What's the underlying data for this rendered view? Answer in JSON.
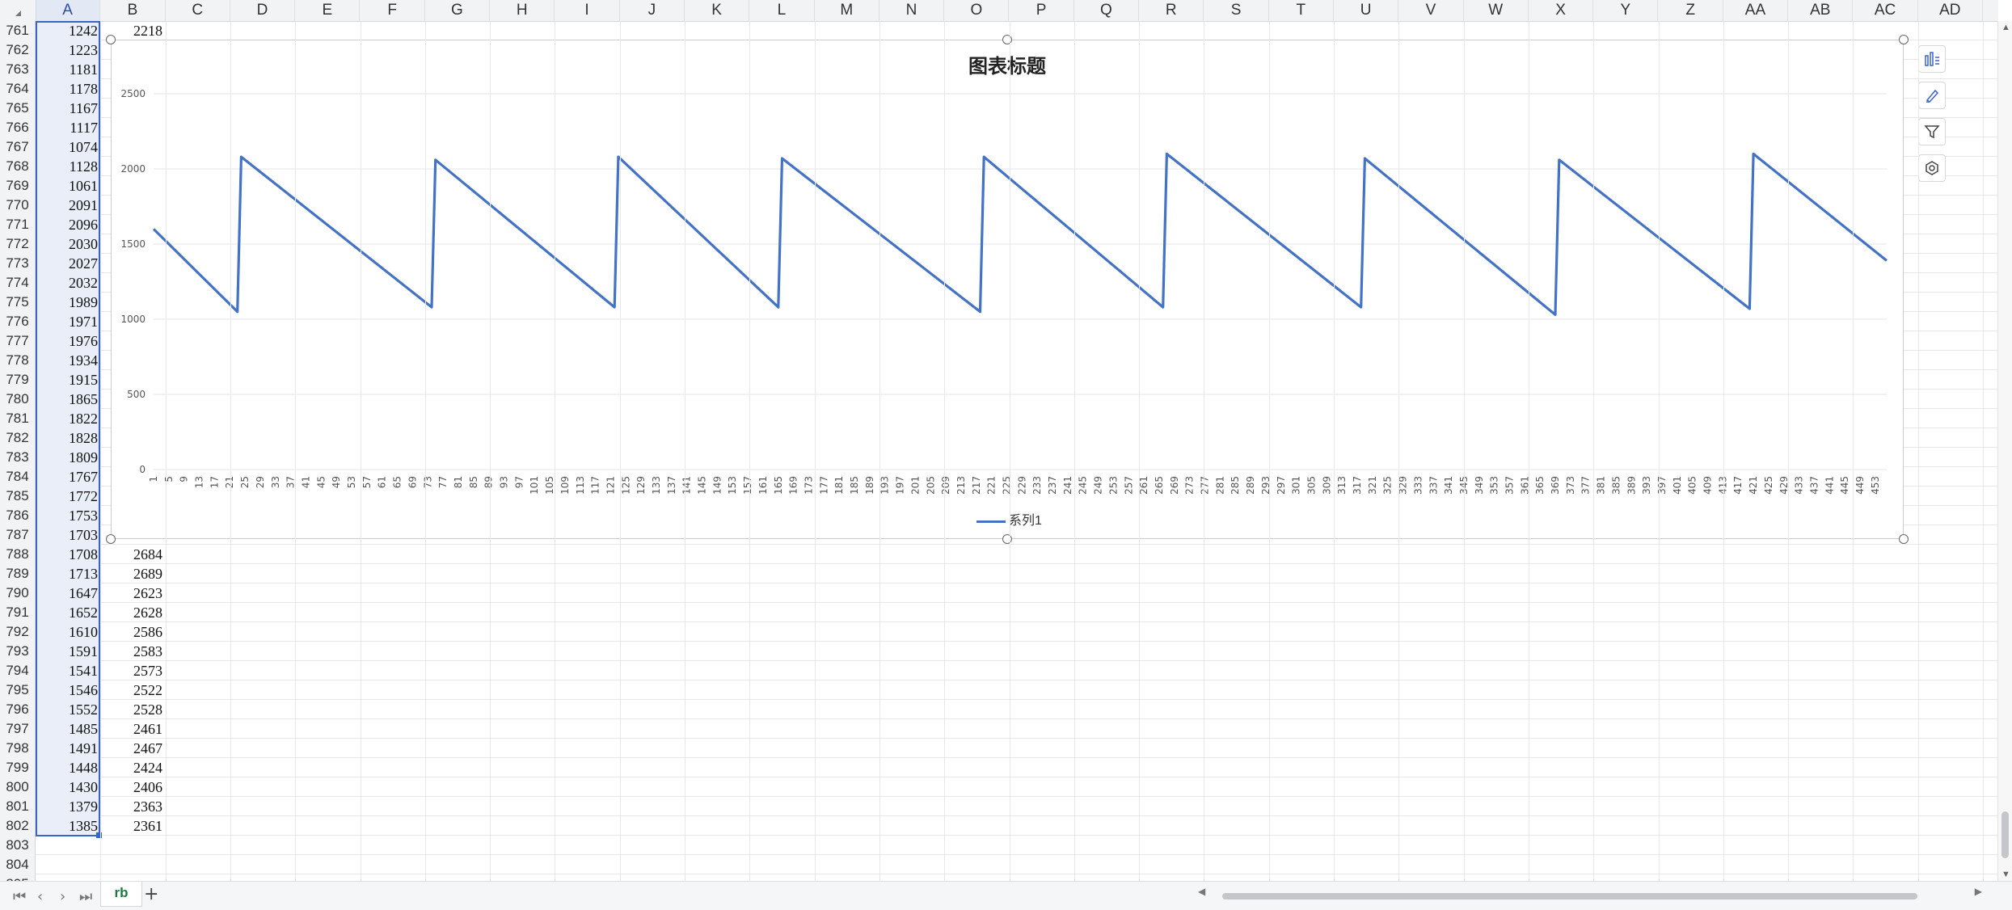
{
  "spreadsheet": {
    "columns": [
      "A",
      "B",
      "C",
      "D",
      "E",
      "F",
      "G",
      "H",
      "I",
      "J",
      "K",
      "L",
      "M",
      "N",
      "O",
      "P",
      "Q",
      "R",
      "S",
      "T",
      "U",
      "V",
      "W",
      "X",
      "Y",
      "Z",
      "AA",
      "AB",
      "AC",
      "AD"
    ],
    "row_numbers": [
      "761",
      "762",
      "763",
      "764",
      "765",
      "766",
      "767",
      "768",
      "769",
      "770",
      "771",
      "772",
      "773",
      "774",
      "775",
      "776",
      "777",
      "778",
      "779",
      "780",
      "781",
      "782",
      "783",
      "784",
      "785",
      "786",
      "787",
      "788",
      "789",
      "790",
      "791",
      "792",
      "793",
      "794",
      "795",
      "796",
      "797",
      "798",
      "799",
      "800",
      "801",
      "802",
      "803",
      "804",
      "805"
    ],
    "col_a": [
      "1242",
      "1223",
      "1181",
      "1178",
      "1167",
      "1117",
      "1074",
      "1128",
      "1061",
      "2091",
      "2096",
      "2030",
      "2027",
      "2032",
      "1989",
      "1971",
      "1976",
      "1934",
      "1915",
      "1865",
      "1822",
      "1828",
      "1809",
      "1767",
      "1772",
      "1753",
      "1703",
      "1708",
      "1713",
      "1647",
      "1652",
      "1610",
      "1591",
      "1541",
      "1546",
      "1552",
      "1485",
      "1491",
      "1448",
      "1430",
      "1379",
      "1385"
    ],
    "col_b_top": "2218",
    "col_b_visible": [
      {
        "row": "788",
        "value": "2684"
      },
      {
        "row": "789",
        "value": "2689"
      },
      {
        "row": "790",
        "value": "2623"
      },
      {
        "row": "791",
        "value": "2628"
      },
      {
        "row": "792",
        "value": "2586"
      },
      {
        "row": "793",
        "value": "2583"
      },
      {
        "row": "794",
        "value": "2573"
      },
      {
        "row": "795",
        "value": "2522"
      },
      {
        "row": "796",
        "value": "2528"
      },
      {
        "row": "797",
        "value": "2461"
      },
      {
        "row": "798",
        "value": "2467"
      },
      {
        "row": "799",
        "value": "2424"
      },
      {
        "row": "800",
        "value": "2406"
      },
      {
        "row": "801",
        "value": "2363"
      },
      {
        "row": "802",
        "value": "2361"
      }
    ]
  },
  "chart_data": {
    "type": "line",
    "title": "图表标题",
    "xlabel": "",
    "ylabel": "",
    "ylim": [
      0,
      2500
    ],
    "y_ticks": [
      "0",
      "500",
      "1000",
      "1500",
      "2000",
      "2500"
    ],
    "x_range": [
      1,
      456
    ],
    "x_tick_step": 4,
    "grid": true,
    "legend_position": "bottom",
    "series": [
      {
        "name": "系列1",
        "color": "#4472c4",
        "x": [
          1,
          23,
          24,
          74,
          75,
          122,
          123,
          165,
          166,
          218,
          219,
          266,
          267,
          318,
          319,
          369,
          370,
          420,
          421,
          456
        ],
        "values": [
          1600,
          1050,
          2080,
          1080,
          2060,
          1080,
          2080,
          1080,
          2070,
          1050,
          2080,
          1080,
          2100,
          1080,
          2070,
          1030,
          2060,
          1070,
          2100,
          1390
        ]
      }
    ]
  },
  "chart_ui": {
    "tools": [
      "chart-elements-icon",
      "chart-style-icon",
      "chart-filter-icon",
      "chart-settings-icon"
    ]
  },
  "sheet_tabs": {
    "active": "rb",
    "add_label": "+"
  }
}
